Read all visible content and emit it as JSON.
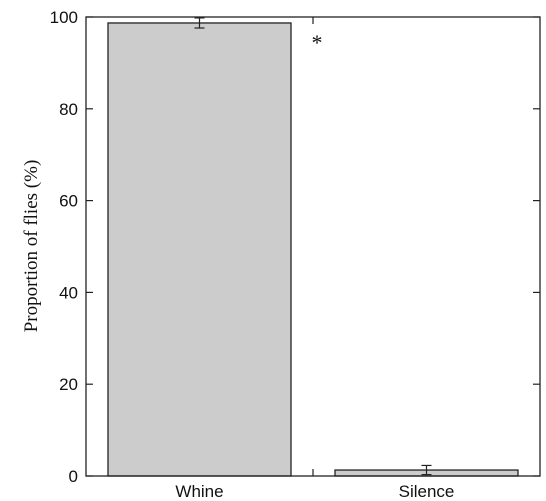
{
  "chart_data": {
    "type": "bar",
    "categories": [
      "Whine",
      "Silence"
    ],
    "values": [
      98.7,
      1.3
    ],
    "errors": [
      1.1,
      1.0
    ],
    "ylabel": "Proportion of flies (%)",
    "xlabel": "",
    "ylim": [
      0,
      100
    ],
    "yticks": [
      "0",
      "20",
      "40",
      "60",
      "80",
      "100"
    ],
    "annotation": "*",
    "grid": false,
    "bar_color": "#cccccc",
    "edge_color": "#222222"
  }
}
